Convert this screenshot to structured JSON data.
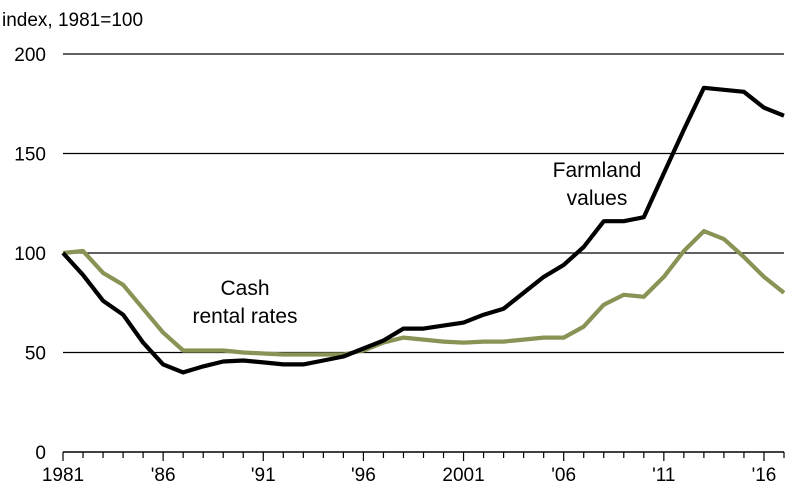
{
  "chart_data": {
    "type": "line",
    "ylabel": "index, 1981=100",
    "ylim": [
      0,
      200
    ],
    "xlim": [
      1981,
      2017
    ],
    "yticks": [
      0,
      50,
      100,
      150,
      200
    ],
    "ytick_labels": [
      "0",
      "50",
      "100",
      "150",
      "200"
    ],
    "xticks": [
      1981,
      1986,
      1991,
      1996,
      2001,
      2006,
      2011,
      2016
    ],
    "xtick_labels": [
      "1981",
      "'86",
      "'91",
      "'96",
      "2001",
      "'06",
      "'11",
      "'16"
    ],
    "grid": "horizontal",
    "x": [
      1981,
      1982,
      1983,
      1984,
      1985,
      1986,
      1987,
      1988,
      1989,
      1990,
      1991,
      1992,
      1993,
      1994,
      1995,
      1996,
      1997,
      1998,
      1999,
      2000,
      2001,
      2002,
      2003,
      2004,
      2005,
      2006,
      2007,
      2008,
      2009,
      2010,
      2011,
      2012,
      2013,
      2014,
      2015,
      2016,
      2017
    ],
    "series": [
      {
        "name": "Farmland values",
        "label_lines": [
          "Farmland",
          "values"
        ],
        "color": "#000000",
        "values": [
          100,
          89,
          76,
          69,
          55,
          44,
          40,
          43,
          45.5,
          46,
          45,
          44,
          44,
          46,
          48,
          52,
          56,
          62,
          62,
          63.5,
          65,
          69,
          72,
          80,
          88,
          94,
          103,
          116,
          116,
          118,
          140,
          162,
          183,
          182,
          181,
          173,
          169
        ]
      },
      {
        "name": "Cash rental rates",
        "label_lines": [
          "Cash",
          "rental rates"
        ],
        "color": "#8a9355",
        "values": [
          100,
          101,
          90,
          84,
          72,
          60,
          51,
          51,
          51,
          50,
          49.5,
          49,
          49,
          49,
          49,
          51,
          55,
          57.5,
          56.5,
          55.5,
          55,
          55.5,
          55.5,
          56.5,
          57.5,
          57.5,
          63,
          74,
          79,
          78,
          88,
          101,
          111,
          107,
          98,
          88,
          80
        ]
      }
    ]
  }
}
